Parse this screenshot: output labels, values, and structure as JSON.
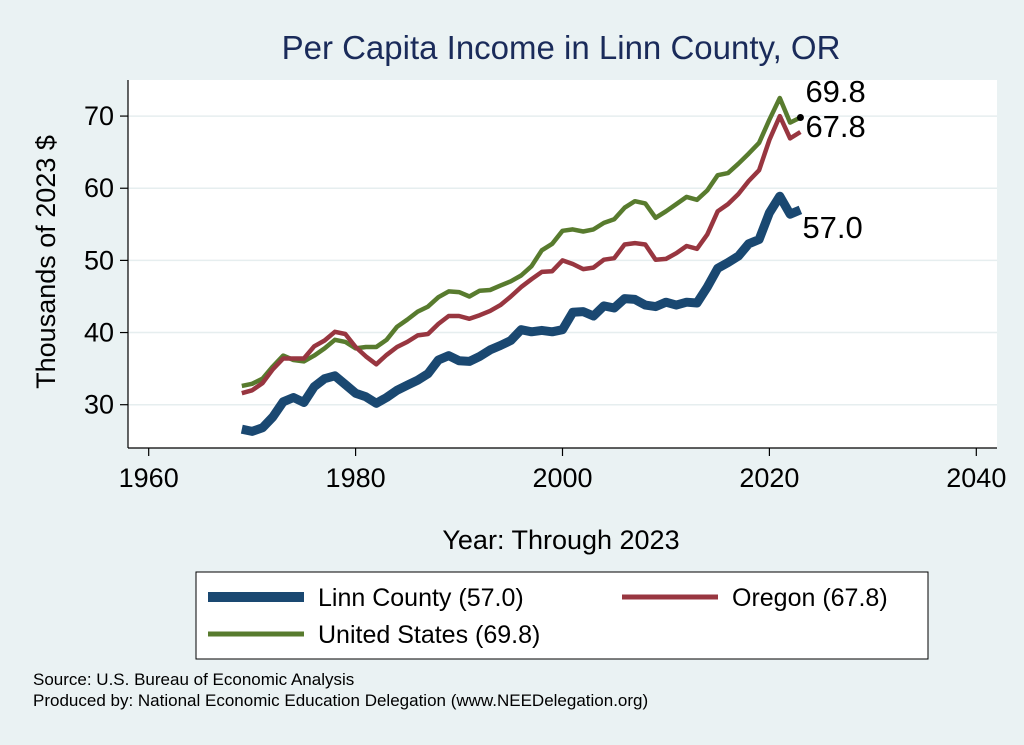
{
  "chart_data": {
    "type": "line",
    "title": "Per Capita Income in Linn County, OR",
    "xlabel": "Year: Through 2023",
    "ylabel": "Thousands of 2023 $",
    "xlim": [
      1958,
      2042
    ],
    "ylim": [
      24,
      75
    ],
    "xticks": [
      1960,
      1980,
      2000,
      2020,
      2040
    ],
    "yticks": [
      30,
      40,
      50,
      60,
      70
    ],
    "grid": true,
    "legend_position": "bottom",
    "x": [
      1969,
      1970,
      1971,
      1972,
      1973,
      1974,
      1975,
      1976,
      1977,
      1978,
      1979,
      1980,
      1981,
      1982,
      1983,
      1984,
      1985,
      1986,
      1987,
      1988,
      1989,
      1990,
      1991,
      1992,
      1993,
      1994,
      1995,
      1996,
      1997,
      1998,
      1999,
      2000,
      2001,
      2002,
      2003,
      2004,
      2005,
      2006,
      2007,
      2008,
      2009,
      2010,
      2011,
      2012,
      2013,
      2014,
      2015,
      2016,
      2017,
      2018,
      2019,
      2020,
      2021,
      2022,
      2023
    ],
    "series": [
      {
        "name": "United States (69.8)",
        "color": "#587b2e",
        "end_label": "69.8",
        "values": [
          32.6,
          32.9,
          33.6,
          35.3,
          36.8,
          36.2,
          36.0,
          36.8,
          37.8,
          39.0,
          38.7,
          37.8,
          38.0,
          38.0,
          39.0,
          40.8,
          41.8,
          42.9,
          43.6,
          44.9,
          45.7,
          45.6,
          45.0,
          45.8,
          45.9,
          46.5,
          47.1,
          47.9,
          49.2,
          51.4,
          52.3,
          54.1,
          54.3,
          54.0,
          54.3,
          55.2,
          55.7,
          57.3,
          58.2,
          57.9,
          55.9,
          56.8,
          57.8,
          58.8,
          58.4,
          59.7,
          61.8,
          62.1,
          63.4,
          64.8,
          66.3,
          69.5,
          72.5,
          69.1,
          69.8
        ]
      },
      {
        "name": "Oregon (67.8)",
        "color": "#983640",
        "end_label": "67.8",
        "values": [
          31.6,
          32.0,
          33.0,
          34.9,
          36.4,
          36.4,
          36.4,
          38.1,
          38.9,
          40.1,
          39.8,
          38.0,
          36.7,
          35.6,
          36.9,
          38.0,
          38.7,
          39.6,
          39.8,
          41.2,
          42.3,
          42.3,
          41.9,
          42.4,
          43.0,
          43.8,
          45.0,
          46.3,
          47.4,
          48.4,
          48.5,
          50.0,
          49.5,
          48.8,
          49.0,
          50.1,
          50.3,
          52.2,
          52.4,
          52.2,
          50.1,
          50.2,
          51.0,
          52.0,
          51.6,
          53.6,
          56.8,
          57.8,
          59.2,
          61.0,
          62.5,
          66.7,
          70.0,
          66.9,
          67.8
        ]
      },
      {
        "name": "Linn County (57.0)",
        "color": "#1a4871",
        "end_label": "57.0",
        "values": [
          26.6,
          26.3,
          26.8,
          28.3,
          30.4,
          31.0,
          30.3,
          32.5,
          33.6,
          34.0,
          32.8,
          31.6,
          31.1,
          30.2,
          31.0,
          32.0,
          32.7,
          33.4,
          34.3,
          36.2,
          36.8,
          36.1,
          36.0,
          36.7,
          37.6,
          38.2,
          38.9,
          40.4,
          40.1,
          40.3,
          40.1,
          40.4,
          42.8,
          42.9,
          42.3,
          43.7,
          43.4,
          44.7,
          44.6,
          43.8,
          43.6,
          44.2,
          43.8,
          44.2,
          44.1,
          46.3,
          48.9,
          49.7,
          50.6,
          52.3,
          52.9,
          56.6,
          58.9,
          56.4,
          57.0
        ]
      }
    ],
    "legend": [
      {
        "label": "Linn County (57.0)",
        "color": "#1a4871"
      },
      {
        "label": "Oregon (67.8)",
        "color": "#983640"
      },
      {
        "label": "United States (69.8)",
        "color": "#587b2e"
      }
    ]
  },
  "footer": {
    "source": "Source: U.S. Bureau of Economic Analysis",
    "producer": "Produced by: National Economic Education Delegation (www.NEEDelegation.org)"
  }
}
